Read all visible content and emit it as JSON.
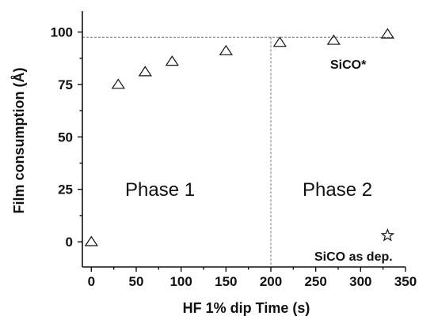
{
  "chart_data": {
    "type": "scatter",
    "title": "",
    "xlabel": "HF 1% dip Time (s)",
    "ylabel": "Film consumption (Å)",
    "xlim": [
      -10,
      350
    ],
    "ylim": [
      -12,
      110
    ],
    "x_ticks": [
      0,
      50,
      100,
      150,
      200,
      250,
      300,
      350
    ],
    "y_ticks": [
      0,
      25,
      50,
      75,
      100
    ],
    "grid": false,
    "legend": "none",
    "series": [
      {
        "marker": "triangle",
        "x": [
          0,
          30,
          60,
          90,
          150,
          210,
          270,
          330
        ],
        "y": [
          0,
          75,
          81,
          86,
          91,
          95,
          96,
          99
        ]
      },
      {
        "marker": "star",
        "x": [
          330
        ],
        "y": [
          3
        ]
      }
    ],
    "reference_lines": {
      "horizontal_y": 97.5,
      "vertical_x": 200
    },
    "annotations": {
      "phase1": "Phase 1",
      "phase2": "Phase 2",
      "sico_star": "SiCO*",
      "sico_as_dep": "SiCO as dep."
    }
  }
}
